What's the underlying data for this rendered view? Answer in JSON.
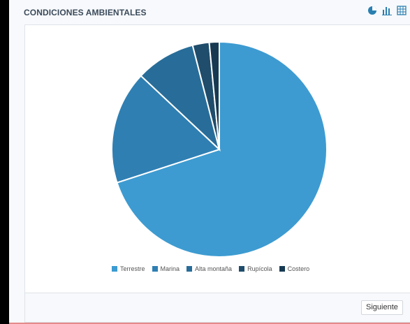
{
  "panel": {
    "title": "CONDICIONES AMBIENTALES",
    "toolbar": [
      {
        "icon": "pie-chart-icon"
      },
      {
        "icon": "bar-chart-icon"
      },
      {
        "icon": "table-icon"
      }
    ],
    "footer": {
      "next_label": "Siguiente"
    }
  },
  "chart_data": {
    "type": "pie",
    "categories": [
      "Terrestre",
      "Marina",
      "Alta montaña",
      "Rupícola",
      "Costero"
    ],
    "values": [
      70,
      17,
      9,
      2.5,
      1.5
    ],
    "colors": [
      "#3d9bd1",
      "#2f7fb3",
      "#286d99",
      "#1f4d6b",
      "#173a52"
    ],
    "legend": "bottom"
  }
}
